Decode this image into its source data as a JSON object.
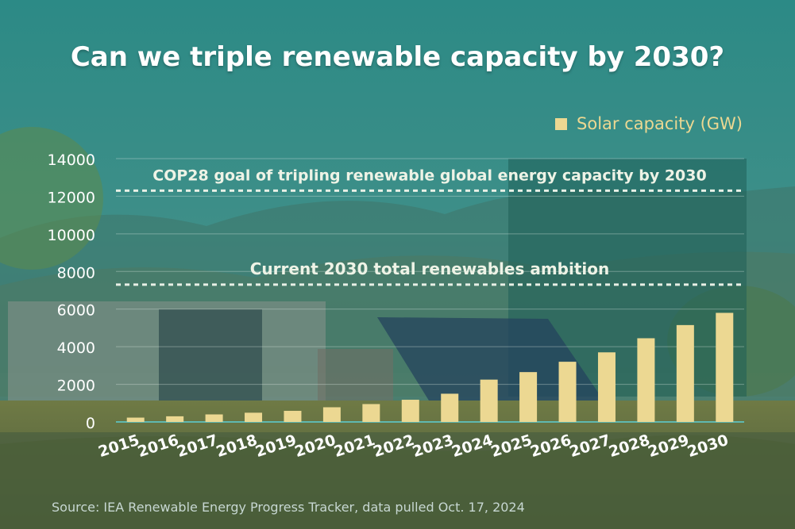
{
  "title": "Can we triple renewable capacity by 2030?",
  "legend_label": "Solar capacity (GW)",
  "source": "Source: IEA Renewable Energy Progress Tracker, data pulled Oct. 17, 2024",
  "colors": {
    "bar": "#ecd892",
    "reference_line": "#e8f0e6",
    "text_light": "#ffffff"
  },
  "chart_data": {
    "type": "bar",
    "title": "Can we triple renewable capacity by 2030?",
    "xlabel": "",
    "ylabel": "",
    "ylim": [
      0,
      14000
    ],
    "yticks": [
      0,
      2000,
      4000,
      6000,
      8000,
      10000,
      12000,
      14000
    ],
    "grid": true,
    "legend_position": "top-right",
    "categories": [
      "2015",
      "2016",
      "2017",
      "2018",
      "2019",
      "2020",
      "2021",
      "2022",
      "2023",
      "2024",
      "2025",
      "2026",
      "2027",
      "2028",
      "2029",
      "2030"
    ],
    "series": [
      {
        "name": "Solar capacity (GW)",
        "values": [
          230,
          300,
          400,
          490,
          590,
          780,
          950,
          1180,
          1500,
          2250,
          2650,
          3200,
          3700,
          4450,
          5150,
          5800
        ]
      }
    ],
    "reference_lines": [
      {
        "label": "COP28 goal of tripling renewable global energy capacity by 2030",
        "value": 12300
      },
      {
        "label": "Current 2030 total renewables ambition",
        "value": 7300
      }
    ]
  }
}
